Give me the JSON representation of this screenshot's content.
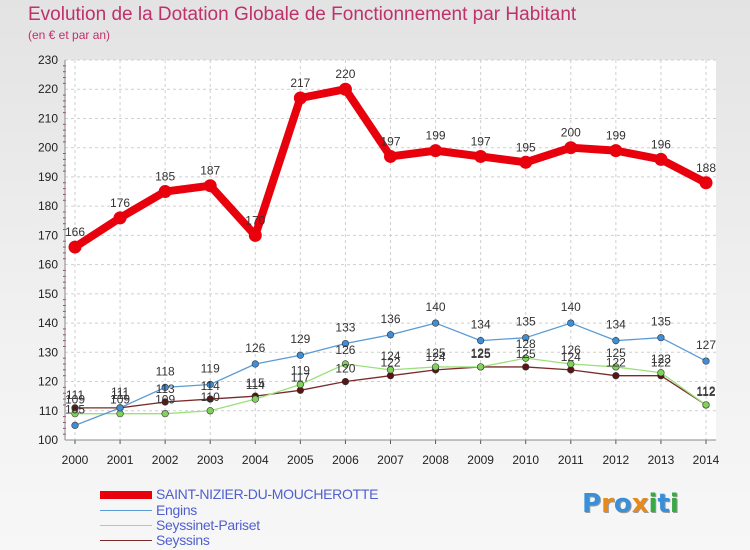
{
  "title": "Evolution de la Dotation Globale de Fonctionnement par Habitant",
  "subtitle": "(en € et par an)",
  "logo": {
    "text": "Proxiti",
    "letters": [
      "P",
      "r",
      "o",
      "x",
      "i",
      "t",
      "i"
    ],
    "colors": [
      "#3a8fd6",
      "#e8891c",
      "#3a8fd6",
      "#e8891c",
      "#39a845",
      "#3a8fd6",
      "#39a845"
    ]
  },
  "chart_data": {
    "type": "line",
    "title": "Evolution de la Dotation Globale de Fonctionnement par Habitant",
    "subtitle": "(en € et par an)",
    "xlabel": "",
    "ylabel": "",
    "ylim": [
      100,
      230
    ],
    "yticks": [
      "100",
      "110",
      "120",
      "130",
      "140",
      "150",
      "160",
      "170",
      "180",
      "190",
      "200",
      "210",
      "220",
      "230"
    ],
    "grid": true,
    "legend_position": "bottom-left",
    "categories": [
      "2000",
      "2001",
      "2002",
      "2003",
      "2004",
      "2005",
      "2006",
      "2007",
      "2008",
      "2009",
      "2010",
      "2011",
      "2012",
      "2013",
      "2014"
    ],
    "series": [
      {
        "name": "SAINT-NIZIER-DU-MOUCHEROTTE",
        "color": "#e8000c",
        "marker": "#e8000c",
        "values": [
          166,
          176,
          185,
          187,
          170,
          217,
          220,
          197,
          199,
          197,
          195,
          200,
          199,
          196,
          188
        ],
        "labels": [
          "166",
          "176",
          "185",
          "187",
          "170",
          "217",
          "220",
          "197",
          "199",
          "197",
          "195",
          "200",
          "199",
          "196",
          "188"
        ]
      },
      {
        "name": "Engins",
        "color": "#5b9bd5",
        "marker": "#3f8fd8",
        "values": [
          105,
          111,
          118,
          119,
          126,
          129,
          133,
          136,
          140,
          134,
          135,
          140,
          134,
          135,
          127
        ],
        "labels": [
          "105",
          "111",
          "118",
          "119",
          "126",
          "129",
          "133",
          "136",
          "140",
          "134",
          "135",
          "140",
          "134",
          "135",
          "127"
        ]
      },
      {
        "name": "Seyssinet-Pariset",
        "color": "#9be07a",
        "marker": "#7fd25a",
        "values": [
          109,
          109,
          109,
          110,
          114,
          119,
          126,
          124,
          125,
          125,
          128,
          126,
          125,
          123,
          112
        ],
        "labels": [
          "109",
          "109",
          "109",
          "110",
          "114",
          "119",
          "126",
          "124",
          "125",
          "125",
          "128",
          "126",
          "125",
          "123",
          "112"
        ]
      },
      {
        "name": "Seyssins",
        "color": "#7a2a2a",
        "marker": "#5a1414",
        "values": [
          111,
          111,
          113,
          114,
          115,
          117,
          120,
          122,
          124,
          125,
          125,
          124,
          122,
          122,
          112
        ],
        "labels": [
          "111",
          "111",
          "113",
          "114",
          "115",
          "117",
          "120",
          "122",
          "124",
          "125",
          "125",
          "124",
          "122",
          "122",
          "112"
        ]
      }
    ]
  }
}
